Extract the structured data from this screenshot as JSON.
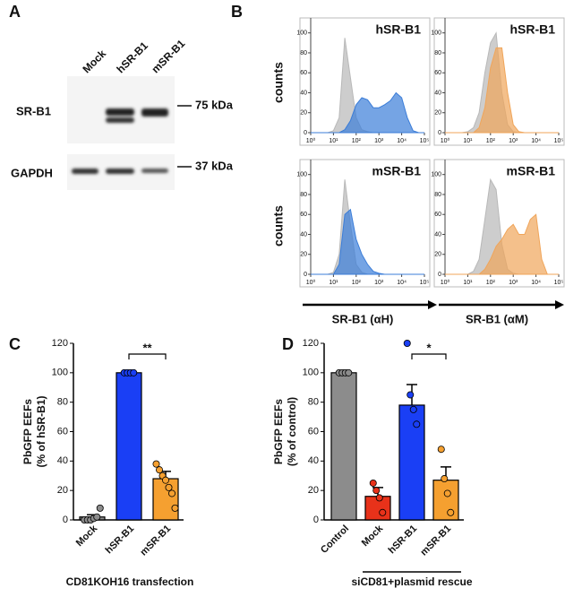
{
  "panel_a": {
    "label": "A",
    "lanes": [
      "Mock",
      "hSR-B1",
      "mSR-B1"
    ],
    "rows": [
      "SR-B1",
      "GAPDH"
    ],
    "markers": [
      "75 kDa",
      "37 kDa"
    ]
  },
  "panel_b": {
    "label": "B",
    "ylabel": "counts",
    "xlabels": [
      "SR-B1 (αH)",
      "SR-B1 (αM)"
    ],
    "x": [
      0,
      0.25,
      0.5,
      0.75,
      1,
      1.25,
      1.5,
      1.75,
      2,
      2.25,
      2.5,
      2.75,
      3,
      3.25,
      3.5,
      3.75,
      4,
      4.25,
      4.5,
      4.75,
      5
    ],
    "xlim": [
      0,
      5
    ],
    "ylim": [
      0,
      115
    ],
    "xticks": [
      {
        "value": 0,
        "label": "10⁰"
      },
      {
        "value": 1,
        "label": "10¹"
      },
      {
        "value": 2,
        "label": "10²"
      },
      {
        "value": 3,
        "label": "10³"
      },
      {
        "value": 4,
        "label": "10⁴"
      },
      {
        "value": 5,
        "label": "10⁵"
      }
    ],
    "yticks": [
      0,
      20,
      40,
      60,
      80,
      100
    ],
    "plots": [
      {
        "title": "hSR-B1",
        "series": [
          {
            "color": "#b8b8b8",
            "values": [
              0,
              0,
              0,
              0,
              2,
              15,
              95,
              55,
              15,
              3,
              1,
              0,
              0,
              0,
              0,
              0,
              0,
              0,
              0,
              0,
              0
            ]
          },
          {
            "color": "#3b7dd8",
            "values": [
              0,
              0,
              0,
              0,
              0,
              0,
              3,
              12,
              28,
              35,
              33,
              25,
              25,
              28,
              32,
              40,
              35,
              15,
              2,
              0,
              0
            ]
          }
        ]
      },
      {
        "title": "hSR-B1",
        "series": [
          {
            "color": "#b8b8b8",
            "values": [
              0,
              0,
              0,
              0,
              1,
              5,
              20,
              60,
              90,
              100,
              40,
              8,
              1,
              0,
              0,
              0,
              0,
              0,
              0,
              0,
              0
            ]
          },
          {
            "color": "#f0a55a",
            "values": [
              0,
              0,
              0,
              0,
              0,
              0,
              5,
              25,
              65,
              85,
              85,
              40,
              8,
              1,
              0,
              0,
              0,
              0,
              0,
              0,
              0
            ]
          }
        ]
      },
      {
        "title": "mSR-B1",
        "series": [
          {
            "color": "#b8b8b8",
            "values": [
              0,
              0,
              0,
              0,
              2,
              20,
              95,
              50,
              10,
              2,
              0,
              0,
              0,
              0,
              0,
              0,
              0,
              0,
              0,
              0,
              0
            ]
          },
          {
            "color": "#3b7dd8",
            "values": [
              0,
              0,
              0,
              0,
              0,
              10,
              60,
              65,
              35,
              20,
              10,
              3,
              1,
              0,
              0,
              0,
              0,
              0,
              0,
              0,
              0
            ]
          }
        ]
      },
      {
        "title": "mSR-B1",
        "series": [
          {
            "color": "#b8b8b8",
            "values": [
              0,
              0,
              0,
              0,
              0,
              3,
              15,
              55,
              95,
              85,
              30,
              5,
              1,
              0,
              0,
              0,
              0,
              0,
              0,
              0,
              0
            ]
          },
          {
            "color": "#f0a55a",
            "values": [
              0,
              0,
              0,
              0,
              0,
              0,
              0,
              5,
              15,
              28,
              35,
              45,
              50,
              40,
              40,
              55,
              60,
              15,
              0,
              0,
              0
            ]
          }
        ]
      }
    ]
  },
  "chart_data": [
    {
      "type": "bar",
      "label": "C",
      "ylabel": [
        "PbGFP EEFs",
        "(% of hSR-B1)"
      ],
      "xlabel": "CD81KOH16 transfection",
      "categories": [
        "Mock",
        "hSR-B1",
        "mSR-B1"
      ],
      "values": [
        2,
        100,
        28
      ],
      "errors": [
        1.5,
        0,
        5
      ],
      "colors": [
        "#8c8c8c",
        "#1a3ff5",
        "#f5a030"
      ],
      "points": [
        [
          0,
          0,
          0,
          1,
          2,
          8
        ],
        [
          100,
          100,
          100,
          100
        ],
        [
          38,
          34,
          30,
          27,
          22,
          18,
          8
        ]
      ],
      "ylim": [
        0,
        120
      ],
      "yticks": [
        0,
        20,
        40,
        60,
        80,
        100,
        120
      ],
      "significance": "**"
    },
    {
      "type": "bar",
      "label": "D",
      "ylabel": [
        "PbGFP EEFs",
        "(% of control)"
      ],
      "xlabel": "siCD81+plasmid rescue",
      "categories": [
        "Control",
        "Mock",
        "hSR-B1",
        "mSR-B1"
      ],
      "values": [
        100,
        16,
        78,
        27
      ],
      "errors": [
        0,
        6,
        14,
        9
      ],
      "colors": [
        "#8c8c8c",
        "#e8321a",
        "#1a3ff5",
        "#f5a030"
      ],
      "points": [
        [
          100,
          100,
          100,
          100
        ],
        [
          25,
          20,
          15,
          5
        ],
        [
          120,
          85,
          75,
          65
        ],
        [
          48,
          28,
          18,
          5
        ]
      ],
      "ylim": [
        0,
        120
      ],
      "yticks": [
        0,
        20,
        40,
        60,
        80,
        100,
        120
      ],
      "significance": "*"
    }
  ]
}
